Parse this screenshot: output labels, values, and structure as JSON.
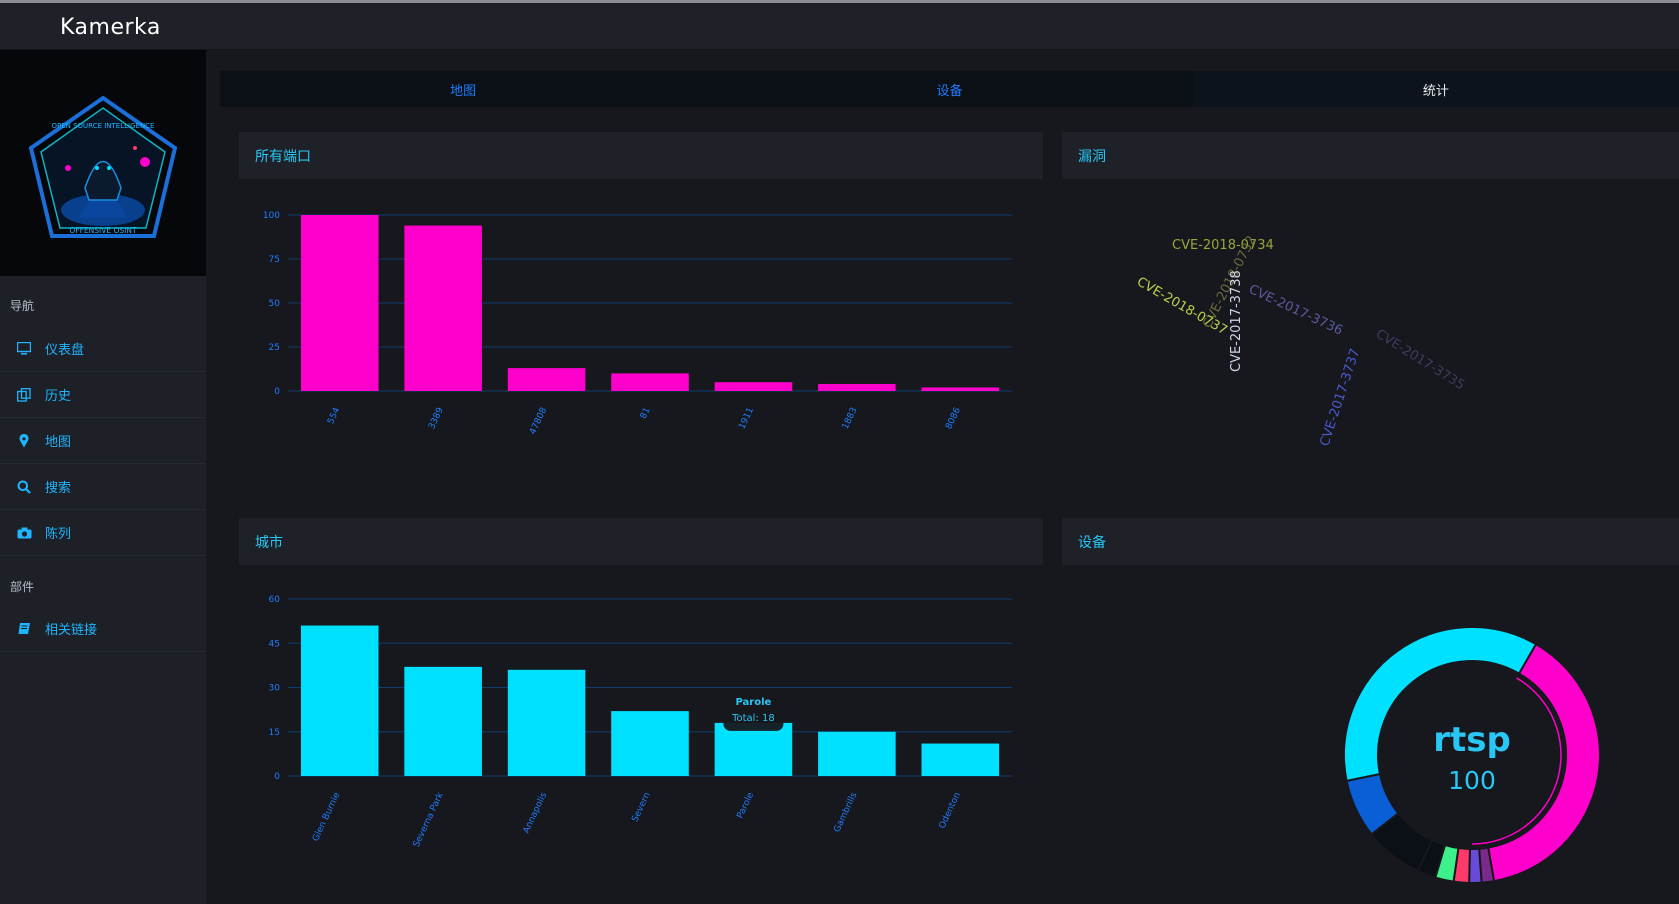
{
  "app": {
    "brand": "Kamerka"
  },
  "logo": {
    "ring_top": "OPEN SOURCE INTELLIGENCE",
    "ring_bottom": "OFFENSIVE OSINT"
  },
  "sidebar": {
    "section_nav": "导航",
    "items": [
      {
        "label": "仪表盘",
        "icon": "monitor-icon"
      },
      {
        "label": "历史",
        "icon": "copy-icon"
      },
      {
        "label": "地图",
        "icon": "map-pin-icon"
      },
      {
        "label": "搜索",
        "icon": "search-icon"
      },
      {
        "label": "陈列",
        "icon": "camera-icon"
      }
    ],
    "section_parts": "部件",
    "part_items": [
      {
        "label": "相关链接",
        "icon": "book-icon"
      }
    ]
  },
  "tabs": [
    {
      "label": "地图"
    },
    {
      "label": "设备"
    },
    {
      "label": "统计"
    }
  ],
  "colors": {
    "ports_bar": "#ff00cc",
    "cities_bar": "#00e1ff",
    "accent": "#1fb5ff",
    "grid": "#0e3c6e"
  },
  "panels": {
    "ports": {
      "title": "所有端口"
    },
    "vulns": {
      "title": "漏洞"
    },
    "cities": {
      "title": "城市"
    },
    "devices": {
      "title": "设备"
    }
  },
  "chart_data": [
    {
      "type": "bar",
      "panel": "ports",
      "categories": [
        "554",
        "3389",
        "47808",
        "81",
        "1911",
        "1883",
        "8086"
      ],
      "values": [
        100,
        94,
        13,
        10,
        5,
        4,
        2
      ],
      "ylim": [
        0,
        100
      ],
      "yticks": [
        0,
        25,
        50,
        75,
        100
      ]
    },
    {
      "type": "wordcloud",
      "panel": "vulns",
      "words": [
        {
          "text": "CVE-2018-0734",
          "color": "#9aa63a"
        },
        {
          "text": "CVE-2018-0732",
          "color": "#6b6b3c"
        },
        {
          "text": "CVE-2018-0737",
          "color": "#b8d44a"
        },
        {
          "text": "CVE-2017-3738",
          "color": "#cfd8ea"
        },
        {
          "text": "CVE-2017-3736",
          "color": "#5a5aa0"
        },
        {
          "text": "CVE-2017-3735",
          "color": "#3c3c60"
        },
        {
          "text": "CVE-2017-3737",
          "color": "#4a5ad0"
        }
      ]
    },
    {
      "type": "bar",
      "panel": "cities",
      "categories": [
        "Glen Burnie",
        "Severna Park",
        "Annapolis",
        "Severn",
        "Parole",
        "Gambrills",
        "Odenton"
      ],
      "values": [
        51,
        37,
        36,
        22,
        18,
        15,
        11
      ],
      "ylim": [
        0,
        60
      ],
      "yticks": [
        0,
        15,
        30,
        45,
        60
      ],
      "tooltip": {
        "title": "Parole",
        "text": "Total: 18"
      }
    },
    {
      "type": "pie",
      "panel": "devices",
      "center_label": "rtsp",
      "center_value": "100",
      "slices": [
        {
          "value": 100,
          "color": "#ff00cc"
        },
        {
          "value": 4,
          "color": "#7a2a8a"
        },
        {
          "value": 4,
          "color": "#6a4ad8"
        },
        {
          "value": 5,
          "color": "#ff3a6a"
        },
        {
          "value": 6,
          "color": "#3cf08a"
        },
        {
          "value": 6,
          "color": "#0b1017"
        },
        {
          "value": 19,
          "color": "#0b1017"
        },
        {
          "value": 19,
          "color": "#0a5fd6"
        },
        {
          "value": 94,
          "color": "#00e1ff"
        }
      ]
    }
  ]
}
